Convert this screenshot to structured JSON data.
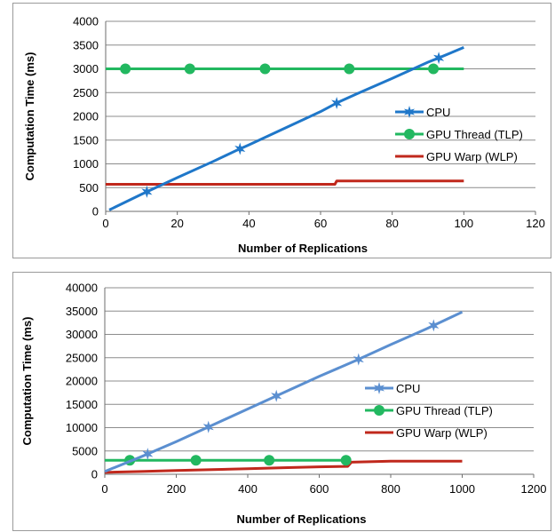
{
  "chart_data": [
    {
      "type": "line",
      "xlabel": "Number of Replications",
      "ylabel": "Computation Time (ms)",
      "xlim": [
        0,
        120
      ],
      "ylim": [
        0,
        4000
      ],
      "xticks": [
        "0",
        "20",
        "40",
        "60",
        "80",
        "100",
        "120"
      ],
      "yticks": [
        "0",
        "500",
        "1000",
        "1500",
        "2000",
        "2500",
        "3000",
        "3500",
        "4000"
      ],
      "grid": "horizontal",
      "legend_position": "right",
      "series": [
        {
          "name": "CPU",
          "color": "#1f77c9",
          "marker": "star",
          "x": [
            1,
            10,
            20,
            30,
            37,
            40,
            50,
            60,
            65,
            70,
            80,
            90,
            93,
            100
          ],
          "y": [
            30,
            360,
            710,
            1050,
            1300,
            1400,
            1750,
            2100,
            2300,
            2470,
            2800,
            3140,
            3230,
            3450
          ],
          "marker_x": [
            11.5,
            37.5,
            64.5,
            93
          ]
        },
        {
          "name": "GPU Thread (TLP)",
          "color": "#22b860",
          "marker": "circle",
          "x": [
            0,
            100
          ],
          "y": [
            3000,
            3000
          ],
          "marker_x": [
            5.5,
            23.5,
            44.5,
            68,
            91.5
          ]
        },
        {
          "name": "GPU Warp (WLP)",
          "color": "#c0281c",
          "marker": "none",
          "x": [
            0,
            64,
            64.5,
            100
          ],
          "y": [
            570,
            570,
            640,
            640
          ]
        }
      ]
    },
    {
      "type": "line",
      "xlabel": "Number of Replications",
      "ylabel": "Computation Time (ms)",
      "xlim": [
        0,
        1200
      ],
      "ylim": [
        0,
        40000
      ],
      "xticks": [
        "0",
        "200",
        "400",
        "600",
        "800",
        "1000",
        "1200"
      ],
      "yticks": [
        "0",
        "5000",
        "10000",
        "15000",
        "20000",
        "25000",
        "30000",
        "35000",
        "40000"
      ],
      "grid": "horizontal",
      "legend_position": "right",
      "series": [
        {
          "name": "CPU",
          "color": "#5b8fd0",
          "marker": "star",
          "x": [
            0,
            100,
            200,
            300,
            400,
            500,
            600,
            700,
            800,
            900,
            1000
          ],
          "y": [
            600,
            3700,
            7000,
            10500,
            14000,
            17500,
            21000,
            24300,
            27800,
            31200,
            34800
          ],
          "marker_x": [
            120,
            290,
            480,
            710,
            920
          ]
        },
        {
          "name": "GPU Thread (TLP)",
          "color": "#22b860",
          "marker": "circle",
          "x": [
            0,
            680
          ],
          "y": [
            3000,
            3000
          ],
          "marker_x": [
            70,
            255,
            460,
            675
          ]
        },
        {
          "name": "GPU Warp (WLP)",
          "color": "#c0281c",
          "marker": "none",
          "x": [
            0,
            100,
            200,
            300,
            400,
            500,
            600,
            680,
            690,
            800,
            900,
            1000
          ],
          "y": [
            400,
            600,
            800,
            1000,
            1200,
            1400,
            1600,
            1700,
            2600,
            2800,
            2800,
            2800
          ]
        }
      ]
    }
  ]
}
